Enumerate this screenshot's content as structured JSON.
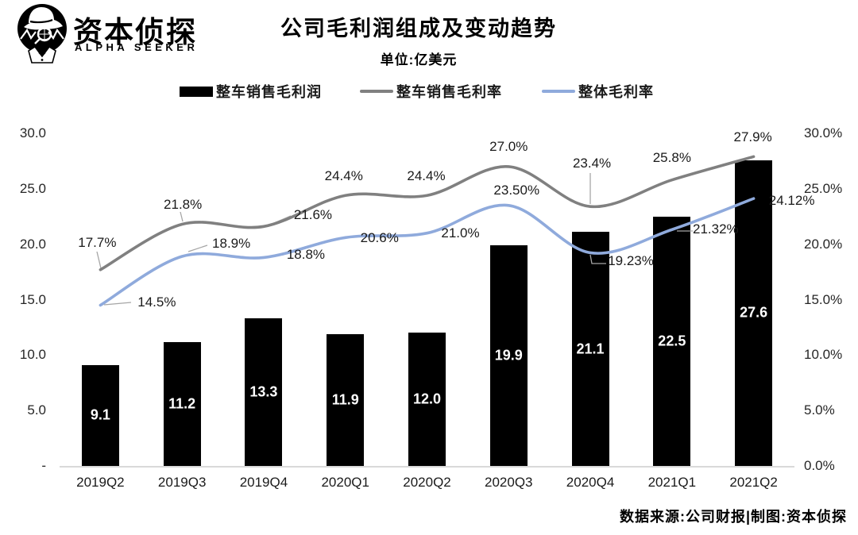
{
  "brand": {
    "name_cn": "资本侦探",
    "name_en": "ALPHA SEEKER"
  },
  "header": {
    "title": "公司毛利润组成及变动趋势",
    "subtitle": "单位:亿美元"
  },
  "footer": {
    "credit": "数据来源:公司财报|制图:资本侦探"
  },
  "colors": {
    "bar": "#000000",
    "vehicle_margin_line": "#808080",
    "overall_margin_line": "#8FAADC",
    "leader_line": "#a6a6a6",
    "axis_line": "#d9d9d9"
  },
  "chart_data": {
    "type": "bar",
    "combo": "bar+line",
    "title": "公司毛利润组成及变动趋势",
    "subtitle": "单位:亿美元",
    "legend_position": "top",
    "grid": false,
    "categories": [
      "2019Q2",
      "2019Q3",
      "2019Q4",
      "2020Q1",
      "2020Q2",
      "2020Q3",
      "2020Q4",
      "2021Q1",
      "2021Q2"
    ],
    "series": [
      {
        "name": "整车销售毛利润",
        "type": "bar",
        "axis": "left",
        "color": "#000000",
        "values": [
          9.1,
          11.2,
          13.3,
          11.9,
          12.0,
          19.9,
          21.1,
          22.5,
          27.6
        ],
        "labels": [
          "9.1",
          "11.2",
          "13.3",
          "11.9",
          "12.0",
          "19.9",
          "21.1",
          "22.5",
          "27.6"
        ]
      },
      {
        "name": "整车销售毛利率",
        "type": "line",
        "axis": "right",
        "color": "#808080",
        "values": [
          17.7,
          21.8,
          21.6,
          24.4,
          24.4,
          27.0,
          23.4,
          25.8,
          27.9
        ],
        "labels": [
          "17.7%",
          "21.8%",
          "21.6%",
          "24.4%",
          "24.4%",
          "27.0%",
          "23.4%",
          "25.8%",
          "27.9%"
        ]
      },
      {
        "name": "整体毛利率",
        "type": "line",
        "axis": "right",
        "color": "#8FAADC",
        "values": [
          14.5,
          18.9,
          18.8,
          20.6,
          21.0,
          23.5,
          19.23,
          21.32,
          24.12
        ],
        "labels": [
          "14.5%",
          "18.9%",
          "18.8%",
          "20.6%",
          "21.0%",
          "23.50%",
          "19.23%",
          "21.32%",
          "24.12%"
        ]
      }
    ],
    "left_axis": {
      "ticks": [
        "30.0",
        "25.0",
        "20.0",
        "15.0",
        "10.0",
        "5.0",
        "-"
      ],
      "tick_values": [
        30,
        25,
        20,
        15,
        10,
        5,
        0
      ],
      "range": [
        0,
        30
      ]
    },
    "right_axis": {
      "ticks": [
        "30.0%",
        "25.0%",
        "20.0%",
        "15.0%",
        "10.0%",
        "5.0%",
        "0.0%"
      ],
      "tick_values": [
        30,
        25,
        20,
        15,
        10,
        5,
        0
      ],
      "range": [
        0,
        30
      ]
    }
  }
}
